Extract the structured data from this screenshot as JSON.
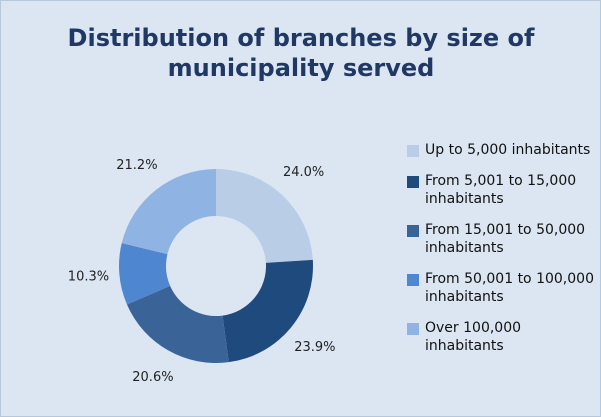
{
  "chart_data": {
    "type": "donut",
    "title": "Distribution of branches by size of municipality served",
    "categories": [
      "Up to 5,000 inhabitants",
      "From 5,001 to 15,000 inhabitants",
      "From 15,001 to 50,000 inhabitants",
      "From 50,001 to 100,000 inhabitants",
      "Over 100,000 inhabitants"
    ],
    "values": [
      24.0,
      23.9,
      20.6,
      10.3,
      21.2
    ],
    "value_labels": [
      "24.0%",
      "23.9%",
      "20.6%",
      "10.3%",
      "21.2%"
    ],
    "colors": [
      "#b9cde6",
      "#1f4a7e",
      "#3a6397",
      "#4f86d0",
      "#8fb3e2"
    ],
    "legend": "right"
  }
}
